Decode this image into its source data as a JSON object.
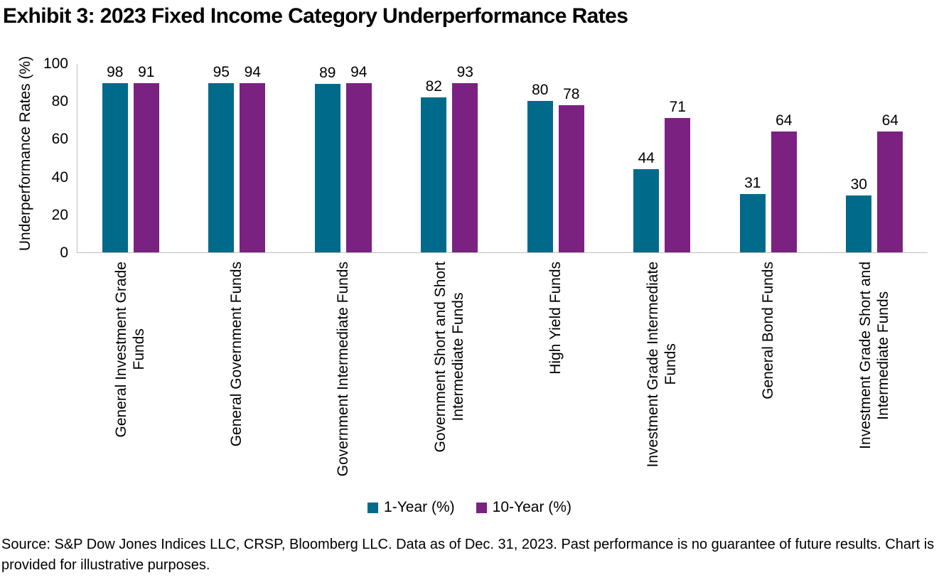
{
  "title": "Exhibit 3: 2023 Fixed Income Category Underperformance Rates",
  "chart_data": {
    "type": "bar",
    "title": "Exhibit 3: 2023 Fixed Income Category Underperformance Rates",
    "categories": [
      "General Investment Grade\nFunds",
      "General Government Funds",
      "Government Intermediate Funds",
      "Government Short and Short\nIntermediate Funds",
      "High Yield Funds",
      "Investment Grade Intermediate\nFunds",
      "General Bond Funds",
      "Investment Grade Short and\nIntermediate Funds"
    ],
    "series": [
      {
        "name": "1-Year (%)",
        "color": "#006A8B",
        "values": [
          98,
          95,
          89,
          82,
          80,
          44,
          31,
          30
        ]
      },
      {
        "name": "10-Year (%)",
        "color": "#7B2182",
        "values": [
          91,
          94,
          94,
          93,
          78,
          71,
          64,
          64
        ]
      }
    ],
    "xlabel": "",
    "ylabel": "Underperformance Rates (%)",
    "ylim": [
      0,
      100
    ],
    "yticks": [
      0,
      20,
      40,
      60,
      80,
      100
    ],
    "grid": false,
    "legend_position": "bottom",
    "axis_line_color": "#BFBFBF"
  },
  "footer": {
    "source_text": "Source: S&P Dow Jones Indices LLC, CRSP, Bloomberg LLC. Data as of Dec. 31, 2023. Past performance is no guarantee of future results. Chart is provided for illustrative purposes."
  }
}
